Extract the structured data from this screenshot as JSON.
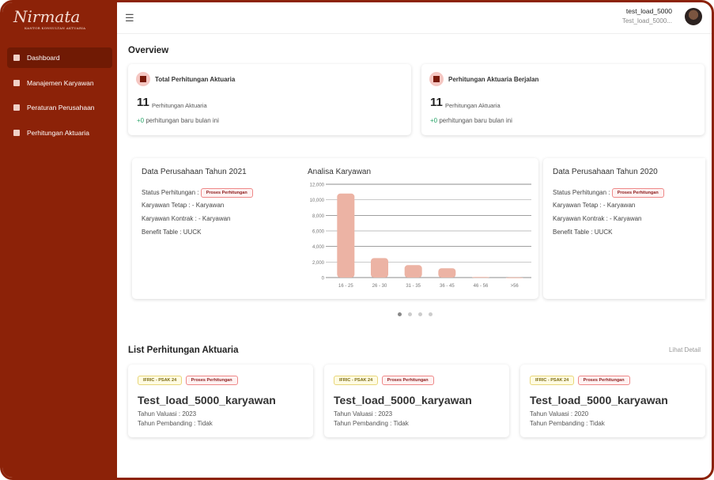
{
  "sidebar": {
    "logo": "Nirmata",
    "logo_sub": "KANTOR KONSULTAN AKTUARIA",
    "items": [
      {
        "label": "Dashboard",
        "icon": "dashboard-icon",
        "active": true
      },
      {
        "label": "Manajemen Karyawan",
        "icon": "id-card-icon"
      },
      {
        "label": "Peraturan Perusahaan",
        "icon": "bank-icon"
      },
      {
        "label": "Perhitungan Aktuaria",
        "icon": "calculator-icon"
      }
    ]
  },
  "header": {
    "user_name": "test_load_5000",
    "user_sub": "Test_load_5000..."
  },
  "overview": {
    "title": "Overview",
    "cards": [
      {
        "title": "Total Perhitungan Aktuaria",
        "value": "11",
        "unit": "Perhitungan Aktuaria",
        "delta": "+0",
        "delta_text": "perhitungan baru bulan ini"
      },
      {
        "title": "Perhitungan Aktuaria Berjalan",
        "value": "11",
        "unit": "Perhitungan Aktuaria",
        "delta": "+0",
        "delta_text": "perhitungan baru bulan ini"
      }
    ]
  },
  "carousel": {
    "slides": [
      {
        "title": "Data Perusahaan Tahun 2021",
        "status_label": "Status Perhitungan :",
        "status": "Proses Perhitungan",
        "tetap": "Karyawan Tetap :   - Karyawan",
        "kontrak": "Karyawan Kontrak :   - Karyawan",
        "benefit": "Benefit Table :   UUCK"
      },
      {
        "title": "Data Perusahaan Tahun 2020",
        "status_label": "Status Perhitungan :",
        "status": "Proses Perhitungan",
        "tetap": "Karyawan Tetap :   - Karyawan",
        "kontrak": "Karyawan Kontrak :   - Karyawan",
        "benefit": "Benefit Table :   UUCK"
      }
    ],
    "dots": 4,
    "active_dot": 0
  },
  "chart_data": {
    "type": "bar",
    "title": "Analisa Karyawan",
    "categories": [
      "16 - 25",
      "26 - 30",
      "31 - 35",
      "36 - 45",
      "46 - 56",
      ">56"
    ],
    "values": [
      10800,
      2500,
      1600,
      1200,
      80,
      20
    ],
    "ylim": [
      0,
      12000
    ],
    "yticks": [
      "0",
      "2,000",
      "4,000",
      "6,000",
      "8,000",
      "10,000",
      "12,000"
    ],
    "grid": true,
    "color": "#ecb3a4"
  },
  "list": {
    "title": "List Perhitungan Aktuaria",
    "more": "Lihat Detail",
    "cards": [
      {
        "tag": "IFRIC - PSAK 24",
        "status": "Proses Perhitungan",
        "name": "Test_load_5000_karyawan",
        "valuasi": "Tahun Valuasi : 2023",
        "pembanding": "Tahun Pembanding : Tidak"
      },
      {
        "tag": "IFRIC - PSAK 24",
        "status": "Proses Perhitungan",
        "name": "Test_load_5000_karyawan",
        "valuasi": "Tahun Valuasi : 2023",
        "pembanding": "Tahun Pembanding : Tidak"
      },
      {
        "tag": "IFRIC - PSAK 24",
        "status": "Proses Perhitungan",
        "name": "Test_load_5000_karyawan",
        "valuasi": "Tahun Valuasi : 2020",
        "pembanding": "Tahun Pembanding : Tidak"
      }
    ]
  },
  "colors": {
    "brand": "#8c2208",
    "active": "#701a04",
    "positive": "#2aa66a"
  }
}
